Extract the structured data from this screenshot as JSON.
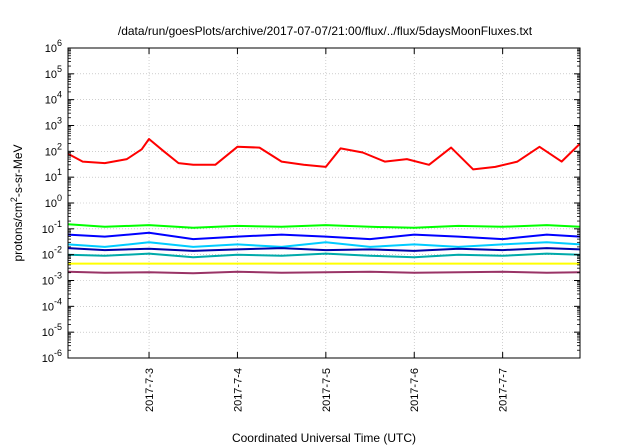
{
  "chart_data": {
    "type": "line",
    "title": "/data/run/goesPlots/archive/2017-07-07/21:00/flux/../flux/5daysMoonFluxes.txt",
    "xlabel": "Coordinated Universal Time (UTC)",
    "ylabel_parts": {
      "base": "protons/cm",
      "sup": "2",
      "rest": "-s-sr-MeV"
    },
    "y_scale": "log",
    "ylim_exp": [
      -6,
      6
    ],
    "y_tick_labels": [
      {
        "exp": -6,
        "base": "10",
        "sup": "-6"
      },
      {
        "exp": -5,
        "base": "10",
        "sup": "-5"
      },
      {
        "exp": -4,
        "base": "10",
        "sup": "-4"
      },
      {
        "exp": -3,
        "base": "10",
        "sup": "-3"
      },
      {
        "exp": -2,
        "base": "10",
        "sup": "-2"
      },
      {
        "exp": -1,
        "base": "10",
        "sup": "-1"
      },
      {
        "exp": 0,
        "base": "10",
        "sup": "0"
      },
      {
        "exp": 1,
        "base": "10",
        "sup": "1"
      },
      {
        "exp": 2,
        "base": "10",
        "sup": "2"
      },
      {
        "exp": 3,
        "base": "10",
        "sup": "3"
      },
      {
        "exp": 4,
        "base": "10",
        "sup": "4"
      },
      {
        "exp": 5,
        "base": "10",
        "sup": "5"
      },
      {
        "exp": 6,
        "base": "10",
        "sup": "6"
      }
    ],
    "x_range": [
      "2017-07-02 02:00",
      "2017-07-07 21:00"
    ],
    "x_ticks": [
      {
        "label": "2017-7-3",
        "at": "2017-07-03 00:00"
      },
      {
        "label": "2017-7-4",
        "at": "2017-07-04 00:00"
      },
      {
        "label": "2017-7-5",
        "at": "2017-07-05 00:00"
      },
      {
        "label": "2017-7-6",
        "at": "2017-07-06 00:00"
      },
      {
        "label": "2017-7-7",
        "at": "2017-07-07 00:00"
      }
    ],
    "grid": true,
    "legend": "none",
    "series": [
      {
        "color": "#ff0000",
        "x": [
          "2017-07-02 02:00",
          "2017-07-02 06:00",
          "2017-07-02 12:00",
          "2017-07-02 18:00",
          "2017-07-02 22:00",
          "2017-07-03 00:00",
          "2017-07-03 04:00",
          "2017-07-03 08:00",
          "2017-07-03 12:00",
          "2017-07-03 18:00",
          "2017-07-04 00:00",
          "2017-07-04 06:00",
          "2017-07-04 12:00",
          "2017-07-04 18:00",
          "2017-07-05 00:00",
          "2017-07-05 04:00",
          "2017-07-05 10:00",
          "2017-07-05 16:00",
          "2017-07-05 22:00",
          "2017-07-06 04:00",
          "2017-07-06 10:00",
          "2017-07-06 16:00",
          "2017-07-06 22:00",
          "2017-07-07 04:00",
          "2017-07-07 10:00",
          "2017-07-07 16:00",
          "2017-07-07 21:00"
        ],
        "y": [
          80,
          40,
          35,
          50,
          120,
          300,
          100,
          35,
          30,
          30,
          150,
          140,
          40,
          30,
          25,
          130,
          90,
          40,
          50,
          30,
          140,
          20,
          25,
          40,
          150,
          40,
          200
        ]
      },
      {
        "color": "#00ff00",
        "x": [
          "2017-07-02 02:00",
          "2017-07-02 12:00",
          "2017-07-03 00:00",
          "2017-07-03 12:00",
          "2017-07-04 00:00",
          "2017-07-04 12:00",
          "2017-07-05 00:00",
          "2017-07-05 12:00",
          "2017-07-06 00:00",
          "2017-07-06 12:00",
          "2017-07-07 00:00",
          "2017-07-07 12:00",
          "2017-07-07 21:00"
        ],
        "y": [
          0.15,
          0.12,
          0.14,
          0.11,
          0.13,
          0.12,
          0.14,
          0.12,
          0.11,
          0.13,
          0.12,
          0.14,
          0.12
        ]
      },
      {
        "color": "#0000ff",
        "x": [
          "2017-07-02 02:00",
          "2017-07-02 12:00",
          "2017-07-03 00:00",
          "2017-07-03 12:00",
          "2017-07-04 00:00",
          "2017-07-04 12:00",
          "2017-07-05 00:00",
          "2017-07-05 12:00",
          "2017-07-06 00:00",
          "2017-07-06 12:00",
          "2017-07-07 00:00",
          "2017-07-07 12:00",
          "2017-07-07 21:00"
        ],
        "y": [
          0.06,
          0.05,
          0.07,
          0.04,
          0.05,
          0.06,
          0.05,
          0.04,
          0.06,
          0.05,
          0.04,
          0.06,
          0.05
        ]
      },
      {
        "color": "#00ccff",
        "x": [
          "2017-07-02 02:00",
          "2017-07-02 12:00",
          "2017-07-03 00:00",
          "2017-07-03 12:00",
          "2017-07-04 00:00",
          "2017-07-04 12:00",
          "2017-07-05 00:00",
          "2017-07-05 12:00",
          "2017-07-06 00:00",
          "2017-07-06 12:00",
          "2017-07-07 00:00",
          "2017-07-07 12:00",
          "2017-07-07 21:00"
        ],
        "y": [
          0.025,
          0.02,
          0.03,
          0.02,
          0.025,
          0.02,
          0.03,
          0.02,
          0.025,
          0.02,
          0.025,
          0.03,
          0.025
        ]
      },
      {
        "color": "#0000aa",
        "x": [
          "2017-07-02 02:00",
          "2017-07-02 12:00",
          "2017-07-03 00:00",
          "2017-07-03 12:00",
          "2017-07-04 00:00",
          "2017-07-04 12:00",
          "2017-07-05 00:00",
          "2017-07-05 12:00",
          "2017-07-06 00:00",
          "2017-07-06 12:00",
          "2017-07-07 00:00",
          "2017-07-07 12:00",
          "2017-07-07 21:00"
        ],
        "y": [
          0.018,
          0.015,
          0.017,
          0.014,
          0.016,
          0.018,
          0.015,
          0.016,
          0.014,
          0.017,
          0.015,
          0.018,
          0.016
        ]
      },
      {
        "color": "#00aaaa",
        "x": [
          "2017-07-02 02:00",
          "2017-07-02 12:00",
          "2017-07-03 00:00",
          "2017-07-03 12:00",
          "2017-07-04 00:00",
          "2017-07-04 12:00",
          "2017-07-05 00:00",
          "2017-07-05 12:00",
          "2017-07-06 00:00",
          "2017-07-06 12:00",
          "2017-07-07 00:00",
          "2017-07-07 12:00",
          "2017-07-07 21:00"
        ],
        "y": [
          0.01,
          0.009,
          0.011,
          0.008,
          0.01,
          0.009,
          0.011,
          0.009,
          0.008,
          0.01,
          0.009,
          0.011,
          0.01
        ]
      },
      {
        "color": "#ffff00",
        "x": [
          "2017-07-02 02:00",
          "2017-07-03 00:00",
          "2017-07-04 00:00",
          "2017-07-05 00:00",
          "2017-07-06 00:00",
          "2017-07-07 00:00",
          "2017-07-07 21:00"
        ],
        "y": [
          0.0045,
          0.0045,
          0.0045,
          0.0045,
          0.0045,
          0.0045,
          0.0045
        ]
      },
      {
        "color": "#993366",
        "x": [
          "2017-07-02 02:00",
          "2017-07-02 12:00",
          "2017-07-03 00:00",
          "2017-07-03 12:00",
          "2017-07-04 00:00",
          "2017-07-04 12:00",
          "2017-07-05 00:00",
          "2017-07-05 12:00",
          "2017-07-06 00:00",
          "2017-07-06 12:00",
          "2017-07-07 00:00",
          "2017-07-07 12:00",
          "2017-07-07 21:00"
        ],
        "y": [
          0.0022,
          0.002,
          0.0021,
          0.0019,
          0.0022,
          0.002,
          0.0021,
          0.0022,
          0.002,
          0.0021,
          0.0022,
          0.002,
          0.0021
        ]
      }
    ]
  }
}
